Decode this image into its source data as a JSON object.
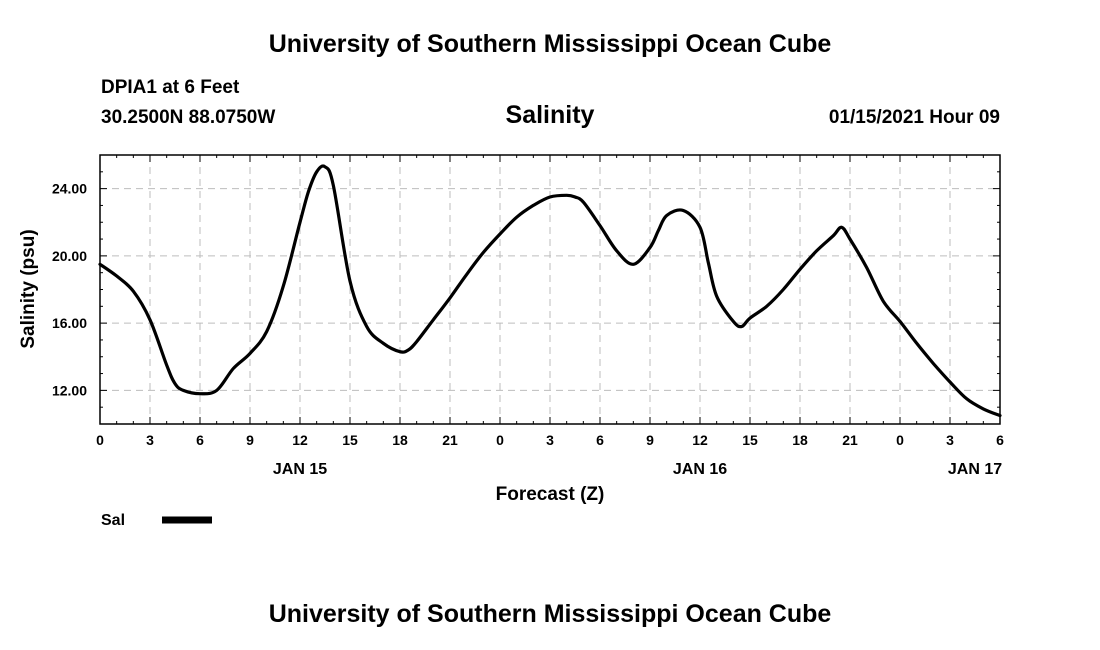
{
  "header": {
    "title": "University of Southern Mississippi Ocean Cube",
    "station": "DPIA1 at 6 Feet",
    "coords": "30.2500N 88.0750W",
    "chart_title": "Salinity",
    "datetime": "01/15/2021 Hour 09"
  },
  "footer": {
    "title": "University of Southern Mississippi Ocean Cube"
  },
  "chart_data": {
    "type": "line",
    "title": "Salinity",
    "xlabel": "Forecast (Z)",
    "ylabel": "Salinity (psu)",
    "x_unit": "hours",
    "xlim": [
      0,
      54
    ],
    "ylim": [
      10,
      26
    ],
    "y_ticks": [
      12,
      16,
      20,
      24
    ],
    "y_tick_labels": [
      "12.00",
      "16.00",
      "20.00",
      "24.00"
    ],
    "x_ticks": [
      0,
      3,
      6,
      9,
      12,
      15,
      18,
      21,
      24,
      27,
      30,
      33,
      36,
      39,
      42,
      45,
      48,
      51,
      54
    ],
    "x_tick_labels": [
      "0",
      "3",
      "6",
      "9",
      "12",
      "15",
      "18",
      "21",
      "0",
      "3",
      "6",
      "9",
      "12",
      "15",
      "18",
      "21",
      "0",
      "3",
      "6"
    ],
    "date_labels": [
      {
        "x": 12,
        "label": "JAN 15"
      },
      {
        "x": 36,
        "label": "JAN 16"
      },
      {
        "x": 52.5,
        "label": "JAN 17"
      }
    ],
    "grid": true,
    "legend": "bottom-left",
    "series": [
      {
        "name": "Sal",
        "color": "#000000",
        "x": [
          0,
          1,
          2,
          3,
          4,
          4.5,
          5,
          6,
          7,
          8,
          9,
          10,
          11,
          12,
          12.5,
          13,
          13.5,
          14,
          15,
          16,
          17,
          18,
          18.5,
          19,
          20,
          21,
          22,
          23,
          24,
          25,
          26,
          27,
          28,
          28.5,
          29,
          30,
          31,
          32,
          33,
          33.5,
          34,
          35,
          36,
          36.5,
          37,
          38,
          38.5,
          39,
          40,
          41,
          42,
          43,
          44,
          44.5,
          45,
          46,
          47,
          48,
          49,
          50,
          51,
          52,
          53,
          54
        ],
        "y": [
          19.5,
          18.8,
          17.9,
          16.2,
          13.5,
          12.4,
          12.0,
          11.8,
          12.0,
          13.3,
          14.2,
          15.5,
          18.2,
          22.0,
          23.8,
          25.0,
          25.3,
          24.2,
          18.5,
          15.8,
          14.8,
          14.3,
          14.4,
          14.9,
          16.2,
          17.5,
          18.9,
          20.2,
          21.3,
          22.3,
          23.0,
          23.5,
          23.6,
          23.5,
          23.2,
          21.8,
          20.3,
          19.5,
          20.5,
          21.5,
          22.4,
          22.7,
          21.7,
          19.6,
          17.6,
          16.1,
          15.8,
          16.3,
          17.0,
          18.0,
          19.2,
          20.3,
          21.2,
          21.7,
          21.0,
          19.3,
          17.3,
          16.1,
          14.8,
          13.6,
          12.5,
          11.5,
          10.9,
          10.5
        ]
      }
    ]
  }
}
